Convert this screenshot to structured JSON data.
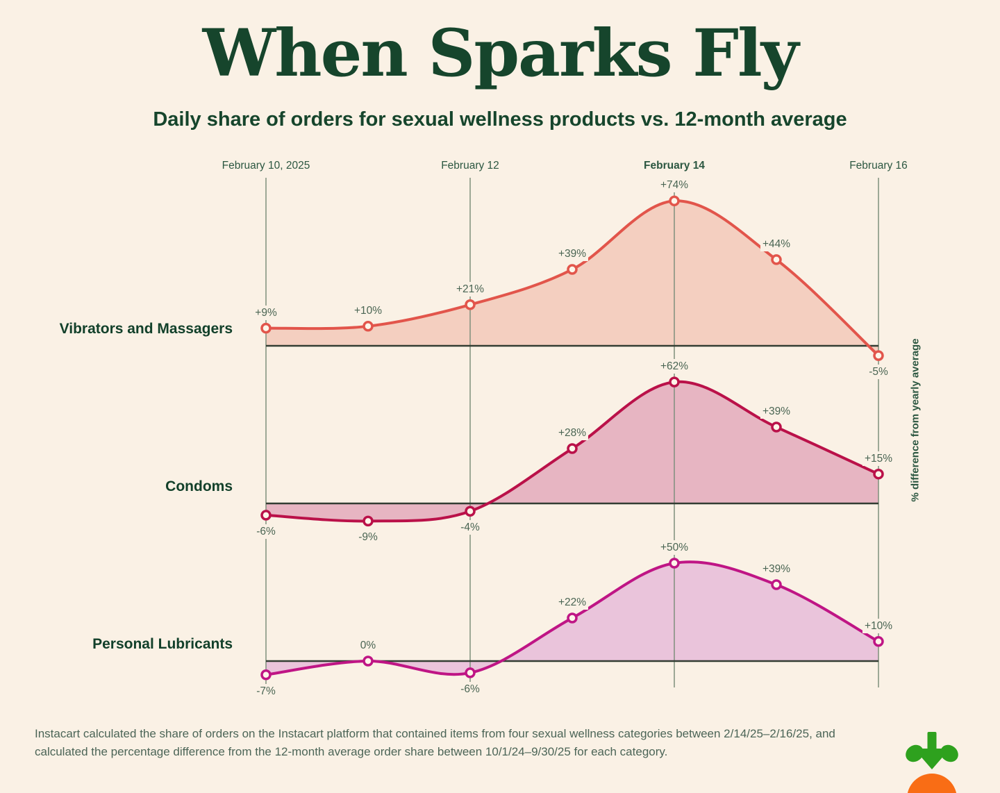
{
  "page": {
    "title": "When Sparks Fly",
    "subtitle": "Daily share of orders for sexual wellness products vs. 12-month average",
    "footnote": "Instacart calculated the share of orders on the Instacart platform that contained items from four sexual wellness categories between 2/14/25–2/16/25, and calculated the percentage difference from the 12-month average order share between 10/1/24–9/30/25 for each category.",
    "background_color": "#faf1e5",
    "heading_color": "#16452c",
    "logo": {
      "name": "instacart-carrot-logo",
      "leaf_color": "#2ea11e",
      "carrot_color": "#f96d15"
    }
  },
  "chart_data": {
    "type": "area",
    "description": "Three ridgeline area charts (one per product category) sharing a daily x axis; values are % difference of daily order share vs. the 12-month average.",
    "x_points": [
      "2025-02-10",
      "2025-02-11",
      "2025-02-12",
      "2025-02-13",
      "2025-02-14",
      "2025-02-15",
      "2025-02-16"
    ],
    "x_tick_labels": [
      {
        "label": "February 10, 2025",
        "point_index": 0,
        "bold": false
      },
      {
        "label": "February 12",
        "point_index": 2,
        "bold": false
      },
      {
        "label": "February 14",
        "point_index": 4,
        "bold": true
      },
      {
        "label": "February 16",
        "point_index": 6,
        "bold": false
      }
    ],
    "right_axis_label": "% difference from yearly average",
    "grid": true,
    "series": [
      {
        "name": "Vibrators and Massagers",
        "values": [
          9,
          10,
          21,
          39,
          74,
          44,
          -5
        ],
        "point_labels": [
          "+9%",
          "+10%",
          "+21%",
          "+39%",
          "+74%",
          "+44%",
          "-5%"
        ],
        "line_color": "#e2554b",
        "fill_color": "#f4cfc0"
      },
      {
        "name": "Condoms",
        "values": [
          -6,
          -9,
          -4,
          28,
          62,
          39,
          15
        ],
        "point_labels": [
          "-6%",
          "-9%",
          "-4%",
          "+28%",
          "+62%",
          "+39%",
          "+15%"
        ],
        "line_color": "#ba1149",
        "fill_color": "#e7b5c2"
      },
      {
        "name": "Personal Lubricants",
        "values": [
          -7,
          0,
          -6,
          22,
          50,
          39,
          10
        ],
        "point_labels": [
          "-7%",
          "0%",
          "-6%",
          "+22%",
          "+50%",
          "+39%",
          "+10%"
        ],
        "line_color": "#bf1585",
        "fill_color": "#eac4db"
      }
    ],
    "grid_color": "#7e8f7c",
    "baseline_color": "#333d33",
    "point_label_color": "#4a6553",
    "tick_label_color": "#2c5741",
    "marker_fill": "#fdf5e9"
  }
}
